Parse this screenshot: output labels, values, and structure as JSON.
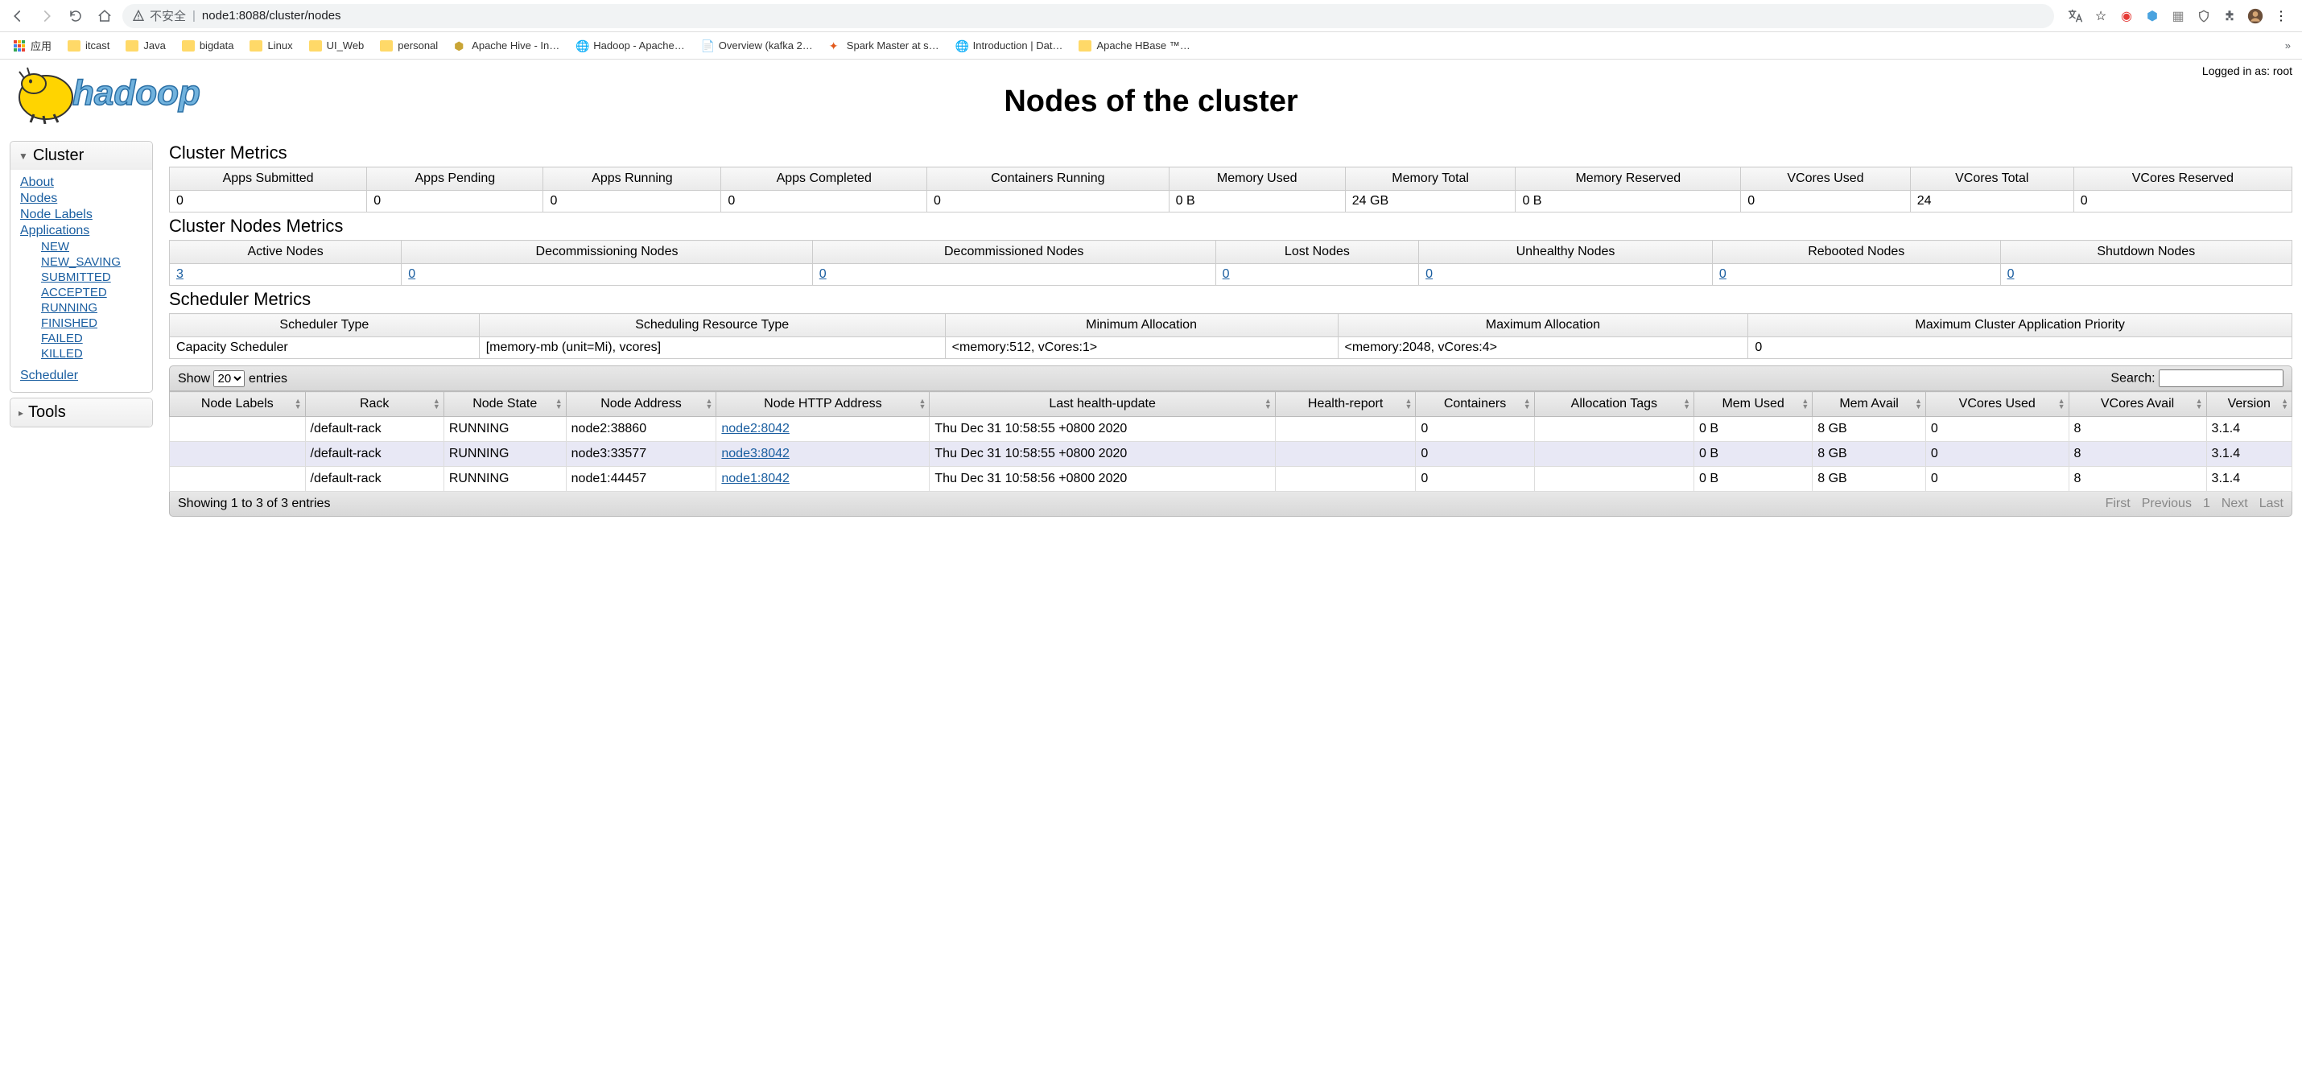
{
  "browser": {
    "url_prefix": "不安全",
    "url": "node1:8088/cluster/nodes",
    "bookmarks": [
      {
        "icon": "apps",
        "label": "应用"
      },
      {
        "icon": "folder",
        "label": "itcast"
      },
      {
        "icon": "folder",
        "label": "Java"
      },
      {
        "icon": "folder",
        "label": "bigdata"
      },
      {
        "icon": "folder",
        "label": "Linux"
      },
      {
        "icon": "folder",
        "label": "UI_Web"
      },
      {
        "icon": "folder",
        "label": "personal"
      },
      {
        "icon": "hive",
        "label": "Apache Hive - In…"
      },
      {
        "icon": "globe",
        "label": "Hadoop - Apache…"
      },
      {
        "icon": "page",
        "label": "Overview (kafka 2…"
      },
      {
        "icon": "spark",
        "label": "Spark Master at s…"
      },
      {
        "icon": "globe",
        "label": "Introduction | Dat…"
      },
      {
        "icon": "folder",
        "label": "Apache HBase ™…"
      }
    ]
  },
  "page": {
    "title": "Nodes of the cluster",
    "login": "Logged in as: root"
  },
  "sidebar": {
    "cluster_label": "Cluster",
    "tools_label": "Tools",
    "links": {
      "about": "About",
      "nodes": "Nodes",
      "node_labels": "Node Labels",
      "applications": "Applications",
      "scheduler": "Scheduler"
    },
    "app_states": [
      "NEW",
      "NEW_SAVING",
      "SUBMITTED",
      "ACCEPTED",
      "RUNNING",
      "FINISHED",
      "FAILED",
      "KILLED"
    ]
  },
  "cluster_metrics": {
    "title": "Cluster Metrics",
    "headers": [
      "Apps Submitted",
      "Apps Pending",
      "Apps Running",
      "Apps Completed",
      "Containers Running",
      "Memory Used",
      "Memory Total",
      "Memory Reserved",
      "VCores Used",
      "VCores Total",
      "VCores Reserved"
    ],
    "values": [
      "0",
      "0",
      "0",
      "0",
      "0",
      "0 B",
      "24 GB",
      "0 B",
      "0",
      "24",
      "0"
    ]
  },
  "nodes_metrics": {
    "title": "Cluster Nodes Metrics",
    "headers": [
      "Active Nodes",
      "Decommissioning Nodes",
      "Decommissioned Nodes",
      "Lost Nodes",
      "Unhealthy Nodes",
      "Rebooted Nodes",
      "Shutdown Nodes"
    ],
    "values": [
      "3",
      "0",
      "0",
      "0",
      "0",
      "0",
      "0"
    ]
  },
  "scheduler_metrics": {
    "title": "Scheduler Metrics",
    "headers": [
      "Scheduler Type",
      "Scheduling Resource Type",
      "Minimum Allocation",
      "Maximum Allocation",
      "Maximum Cluster Application Priority"
    ],
    "values": [
      "Capacity Scheduler",
      "[memory-mb (unit=Mi), vcores]",
      "<memory:512, vCores:1>",
      "<memory:2048, vCores:4>",
      "0"
    ]
  },
  "datatable": {
    "show_label": "Show",
    "entries_label": "entries",
    "search_label": "Search:",
    "page_size": "20",
    "columns": [
      "Node Labels",
      "Rack",
      "Node State",
      "Node Address",
      "Node HTTP Address",
      "Last health-update",
      "Health-report",
      "Containers",
      "Allocation Tags",
      "Mem Used",
      "Mem Avail",
      "VCores Used",
      "VCores Avail",
      "Version"
    ],
    "rows": [
      {
        "labels": "",
        "rack": "/default-rack",
        "state": "RUNNING",
        "addr": "node2:38860",
        "http": "node2:8042",
        "health": "Thu Dec 31 10:58:55 +0800 2020",
        "report": "",
        "cont": "0",
        "tags": "",
        "memu": "0 B",
        "mema": "8 GB",
        "vcu": "0",
        "vca": "8",
        "ver": "3.1.4"
      },
      {
        "labels": "",
        "rack": "/default-rack",
        "state": "RUNNING",
        "addr": "node3:33577",
        "http": "node3:8042",
        "health": "Thu Dec 31 10:58:55 +0800 2020",
        "report": "",
        "cont": "0",
        "tags": "",
        "memu": "0 B",
        "mema": "8 GB",
        "vcu": "0",
        "vca": "8",
        "ver": "3.1.4"
      },
      {
        "labels": "",
        "rack": "/default-rack",
        "state": "RUNNING",
        "addr": "node1:44457",
        "http": "node1:8042",
        "health": "Thu Dec 31 10:58:56 +0800 2020",
        "report": "",
        "cont": "0",
        "tags": "",
        "memu": "0 B",
        "mema": "8 GB",
        "vcu": "0",
        "vca": "8",
        "ver": "3.1.4"
      }
    ],
    "info": "Showing 1 to 3 of 3 entries",
    "pager": [
      "First",
      "Previous",
      "1",
      "Next",
      "Last"
    ]
  }
}
